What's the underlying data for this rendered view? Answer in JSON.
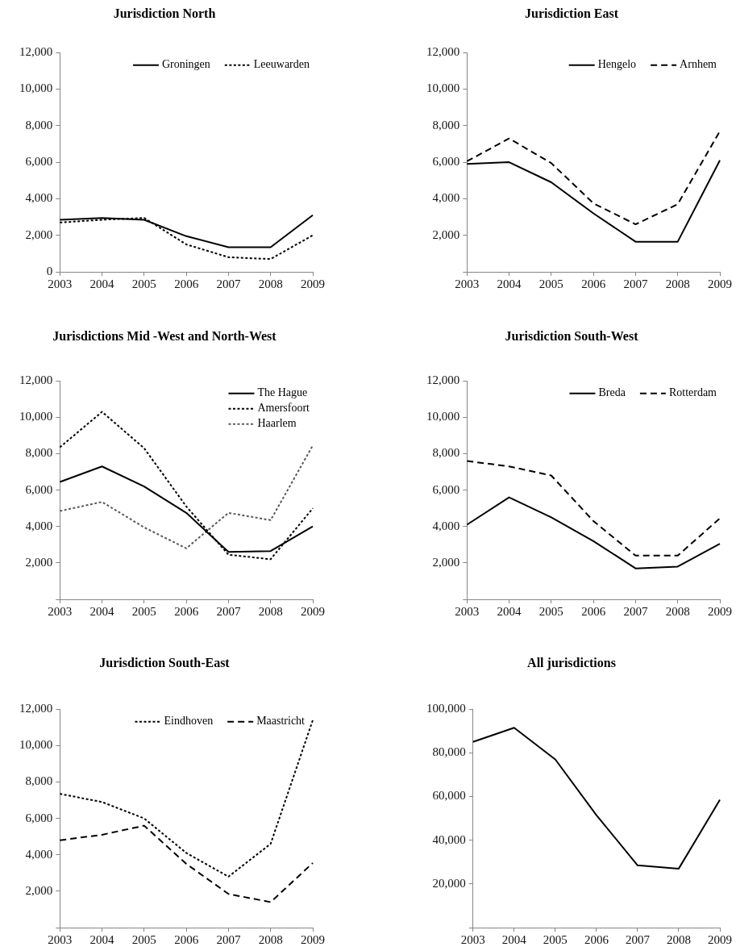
{
  "chart_data": [
    {
      "type": "line",
      "title": "Jurisdiction North",
      "categories": [
        "2003",
        "2004",
        "2005",
        "2006",
        "2007",
        "2008",
        "2009"
      ],
      "series": [
        {
          "name": "Groningen",
          "color": "#000000",
          "line_style": "solid",
          "values": [
            2850,
            2950,
            2850,
            1950,
            1350,
            1350,
            3100
          ]
        },
        {
          "name": "Leeuwarden",
          "color": "#000000",
          "line_style": "dotted",
          "values": [
            2700,
            2850,
            2950,
            1500,
            800,
            700,
            2000
          ]
        }
      ],
      "ylim": [
        0,
        12000
      ],
      "yticks": [
        0,
        {
          "value": 2000,
          "label": "2,000"
        },
        {
          "value": 4000,
          "label": "4,000"
        },
        {
          "value": 6000,
          "label": "6,000"
        },
        {
          "value": 8000,
          "label": "8,000"
        },
        {
          "value": 10000,
          "label": "10,000"
        },
        {
          "value": 12000,
          "label": "12,000"
        }
      ],
      "legend": "top right"
    },
    {
      "type": "line",
      "title": "Jurisdiction East",
      "categories": [
        "2003",
        "2004",
        "2005",
        "2006",
        "2007",
        "2008",
        "2009"
      ],
      "series": [
        {
          "name": "Hengelo",
          "color": "#000000",
          "line_style": "solid",
          "values": [
            5900,
            6000,
            4900,
            3200,
            1650,
            1650,
            6100
          ]
        },
        {
          "name": "Arnhem",
          "color": "#000000",
          "line_style": "dashed",
          "values": [
            6050,
            7300,
            5950,
            3750,
            2600,
            3700,
            7700
          ]
        }
      ],
      "ylim": [
        0,
        12000
      ],
      "yticks": [
        {
          "value": 0,
          "label": null
        },
        {
          "value": 2000,
          "label": "2,000"
        },
        {
          "value": 4000,
          "label": "4,000"
        },
        {
          "value": 6000,
          "label": "6,000"
        },
        {
          "value": 8000,
          "label": "8,000"
        },
        {
          "value": 10000,
          "label": "10,000"
        },
        {
          "value": 12000,
          "label": "12,000"
        }
      ],
      "legend": "top right"
    },
    {
      "type": "line",
      "title": "Jurisdictions Mid -West and North-West",
      "categories": [
        "2003",
        "2004",
        "2005",
        "2006",
        "2007",
        "2008",
        "2009"
      ],
      "series": [
        {
          "name": "The Hague",
          "color": "#000000",
          "line_style": "solid",
          "values": [
            6450,
            7300,
            6200,
            4750,
            2600,
            2650,
            4000
          ]
        },
        {
          "name": "Amersfoort",
          "color": "#000000",
          "line_style": "dotted",
          "values": [
            8350,
            10300,
            8300,
            5100,
            2450,
            2200,
            5000
          ]
        },
        {
          "name": "Haarlem",
          "color": "#595959",
          "line_style": "dotted",
          "values": [
            4850,
            5350,
            3950,
            2800,
            4750,
            4350,
            8450
          ]
        }
      ],
      "ylim": [
        0,
        12000
      ],
      "yticks": [
        {
          "value": 0,
          "label": null
        },
        {
          "value": 2000,
          "label": "2,000"
        },
        {
          "value": 4000,
          "label": "4,000"
        },
        {
          "value": 6000,
          "label": "6,000"
        },
        {
          "value": 8000,
          "label": "8,000"
        },
        {
          "value": 10000,
          "label": "10,000"
        },
        {
          "value": 12000,
          "label": "12,000"
        }
      ],
      "legend": "top right"
    },
    {
      "type": "line",
      "title": "Jurisdiction South-West",
      "categories": [
        "2003",
        "2004",
        "2005",
        "2006",
        "2007",
        "2008",
        "2009"
      ],
      "series": [
        {
          "name": "Breda",
          "color": "#000000",
          "line_style": "solid",
          "values": [
            4100,
            5600,
            4500,
            3200,
            1700,
            1800,
            3050
          ]
        },
        {
          "name": "Rotterdam",
          "color": "#000000",
          "line_style": "dashed",
          "values": [
            7600,
            7300,
            6800,
            4300,
            2400,
            2400,
            4450
          ]
        }
      ],
      "ylim": [
        0,
        12000
      ],
      "yticks": [
        {
          "value": 0,
          "label": null
        },
        {
          "value": 2000,
          "label": "2,000"
        },
        {
          "value": 4000,
          "label": "4,000"
        },
        {
          "value": 6000,
          "label": "6,000"
        },
        {
          "value": 8000,
          "label": "8,000"
        },
        {
          "value": 10000,
          "label": "10,000"
        },
        {
          "value": 12000,
          "label": "12,000"
        }
      ],
      "legend": "top right"
    },
    {
      "type": "line",
      "title": "Jurisdiction South-East",
      "categories": [
        "2003",
        "2004",
        "2005",
        "2006",
        "2007",
        "2008",
        "2009"
      ],
      "series": [
        {
          "name": "Eindhoven",
          "color": "#000000",
          "line_style": "dotted",
          "values": [
            7350,
            6900,
            6000,
            4100,
            2800,
            4600,
            11400
          ]
        },
        {
          "name": "Maastricht",
          "color": "#000000",
          "line_style": "dashed",
          "values": [
            4800,
            5100,
            5600,
            3500,
            1850,
            1400,
            3550
          ]
        }
      ],
      "ylim": [
        0,
        12000
      ],
      "yticks": [
        {
          "value": 0,
          "label": null
        },
        {
          "value": 2000,
          "label": "2,000"
        },
        {
          "value": 4000,
          "label": "4,000"
        },
        {
          "value": 6000,
          "label": "6,000"
        },
        {
          "value": 8000,
          "label": "8,000"
        },
        {
          "value": 10000,
          "label": "10,000"
        },
        {
          "value": 12000,
          "label": "12,000"
        }
      ],
      "legend": "top right"
    },
    {
      "type": "line",
      "title": "All jurisdictions",
      "categories": [
        "2003",
        "2004",
        "2005",
        "2006",
        "2007",
        "2008",
        "2009"
      ],
      "values": [
        85000,
        91500,
        77000,
        51500,
        28500,
        27000,
        58500
      ],
      "color": "#000000",
      "ylim": [
        0,
        100000
      ],
      "yticks": [
        {
          "value": 0,
          "label": null
        },
        {
          "value": 20000,
          "label": "20,000"
        },
        {
          "value": 40000,
          "label": "40,000"
        },
        {
          "value": 60000,
          "label": "60,000"
        },
        {
          "value": 80000,
          "label": "80,000"
        },
        {
          "value": 100000,
          "label": "100,000"
        }
      ]
    }
  ]
}
